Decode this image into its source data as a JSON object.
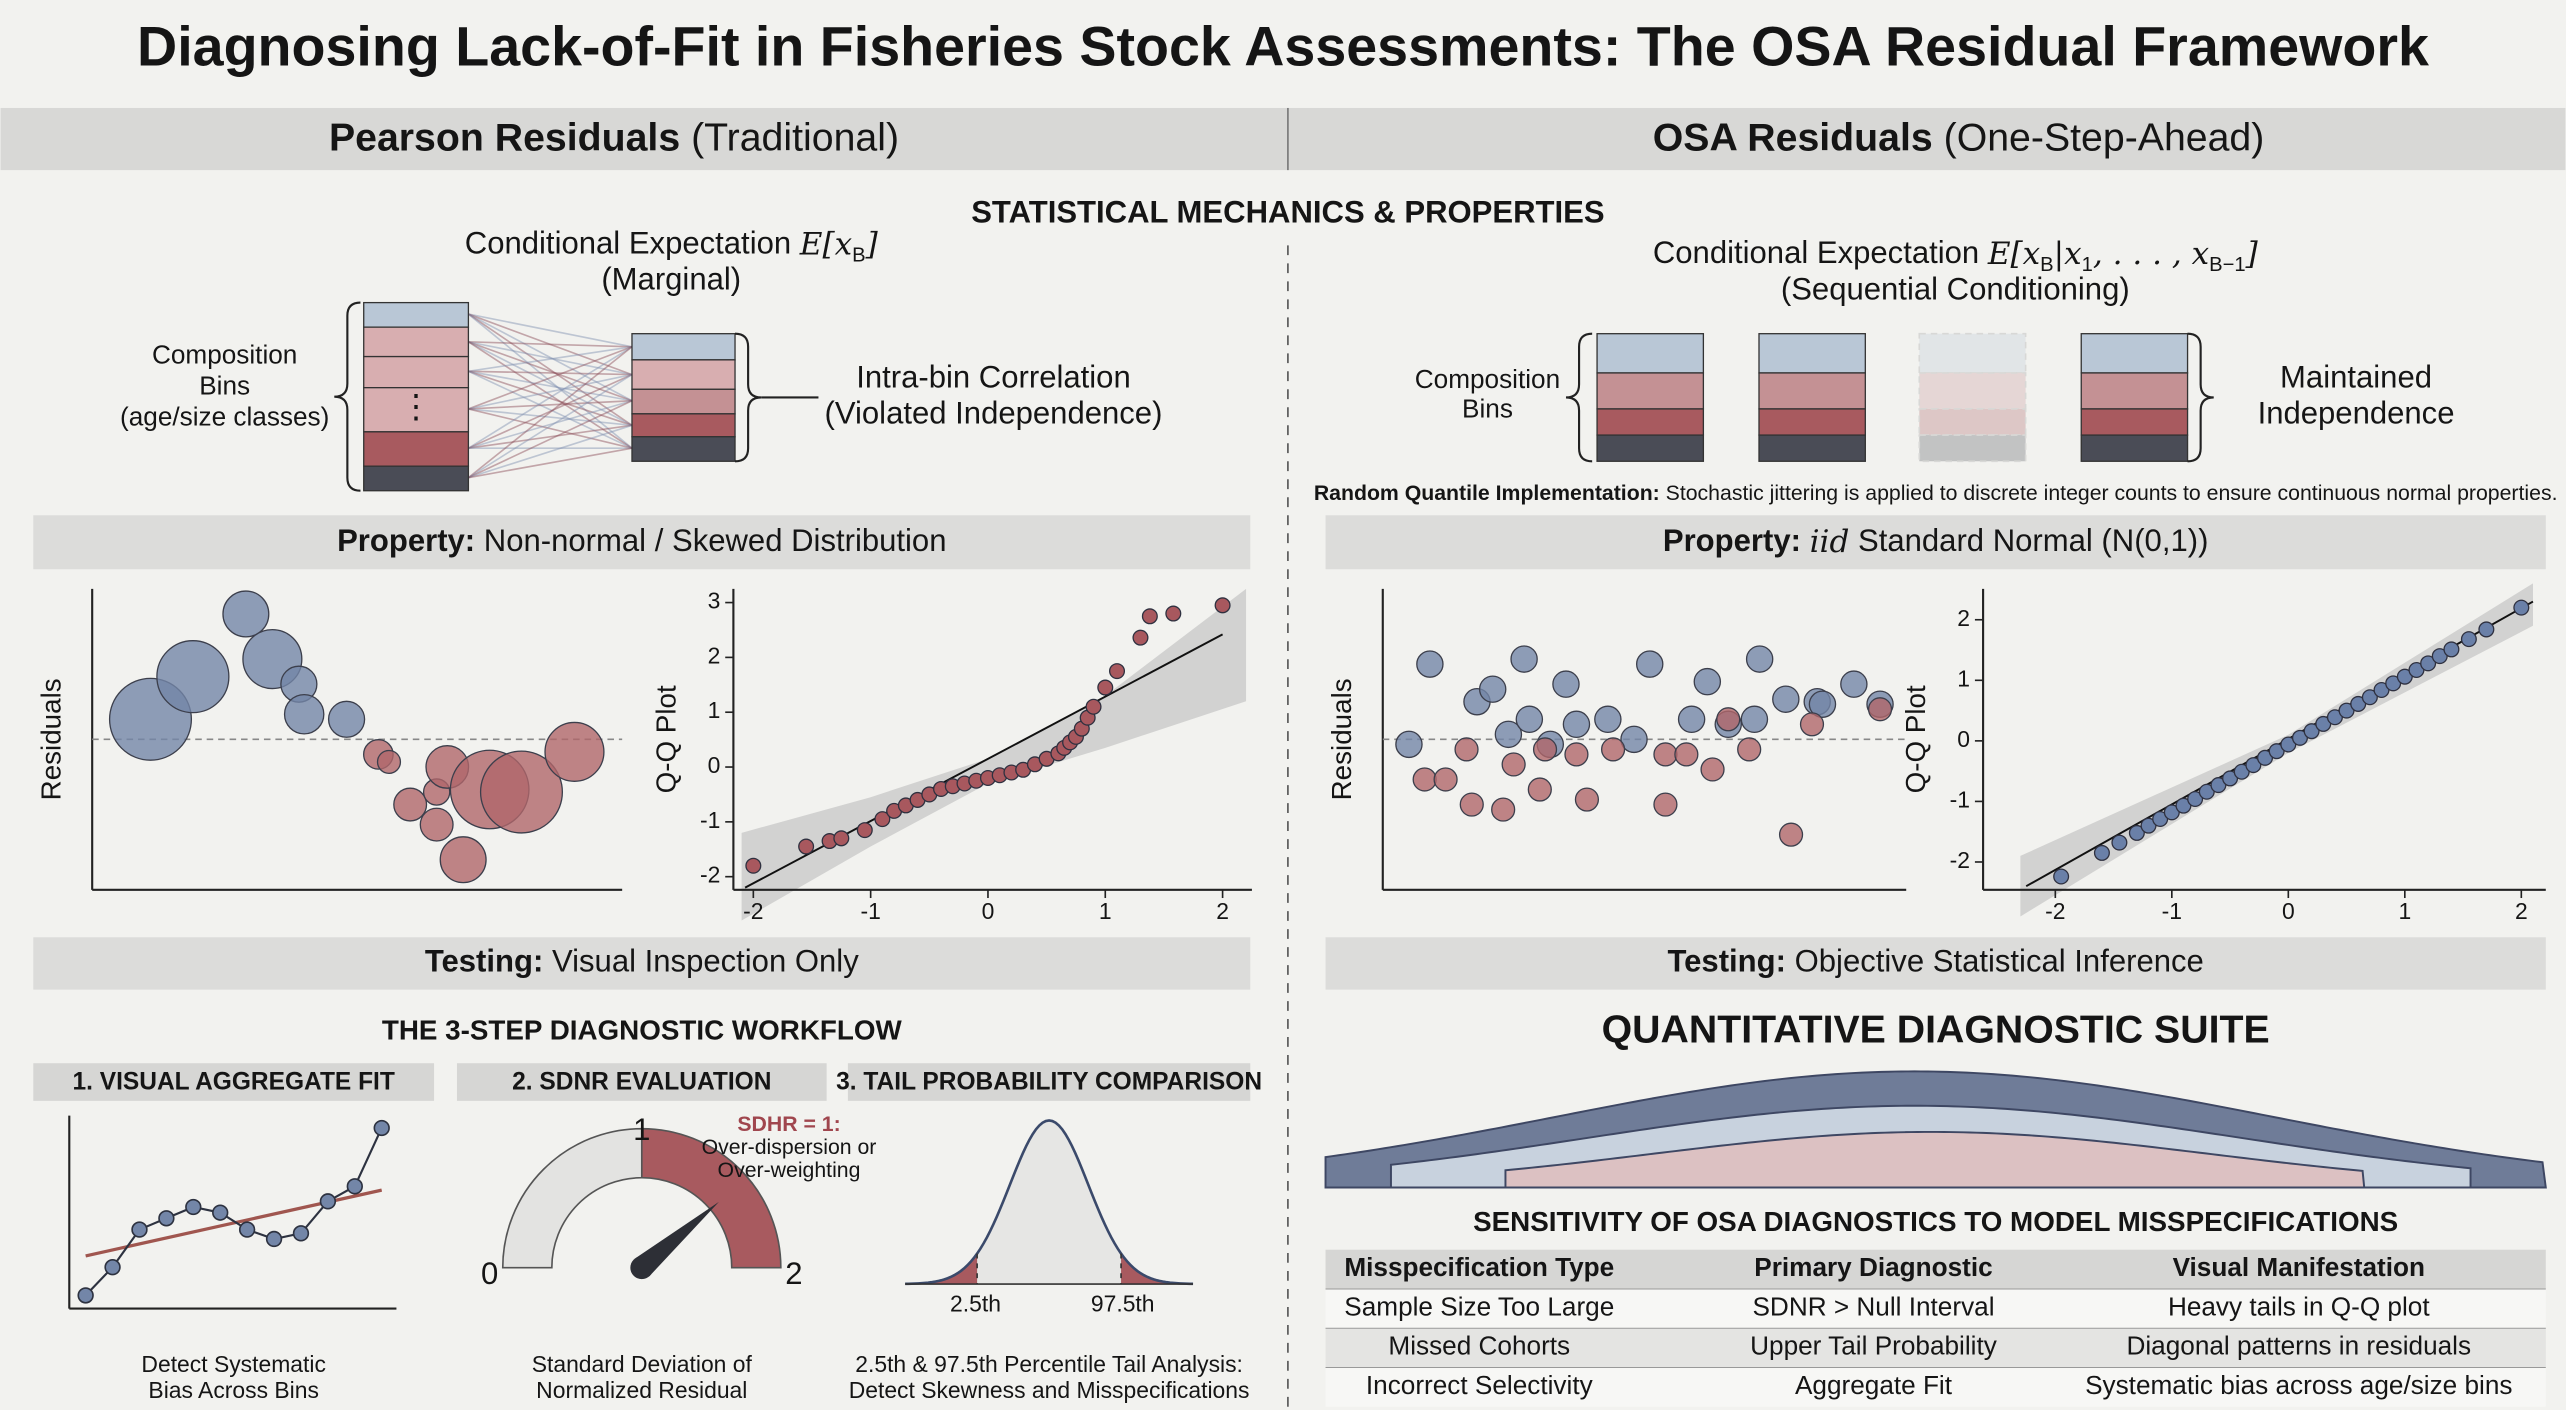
{
  "title": "Diagnosing Lack-of-Fit in Fisheries Stock Assessments: The OSA Residual Framework",
  "section_title": "STATISTICAL MECHANICS & PROPERTIES",
  "columns": [
    {
      "name_bold": "Pearson Residuals",
      "name_rest": "(Traditional)",
      "expectation": {
        "label": "Conditional Expectation",
        "formula": [
          {
            "text": "E[x"
          },
          {
            "text": "B",
            "sub": true
          },
          {
            "text": "]"
          }
        ],
        "note": "(Marginal)"
      },
      "bins_label": [
        "Composition",
        "Bins",
        "(age/size classes)"
      ],
      "ellipsis": "⋮",
      "correlation_label": [
        "Intra-bin Correlation",
        "(Violated Independence)"
      ],
      "property": {
        "label": "Property:",
        "text": "Non-normal / Skewed Distribution"
      },
      "testing": {
        "label": "Testing:",
        "text": "Visual Inspection Only"
      },
      "residual_plot": {
        "type": "scatter",
        "ylabel": "Residuals",
        "xlim": [
          0,
          10
        ],
        "ylim": [
          -3,
          3
        ],
        "zero_line": true,
        "series": [
          {
            "color": "#7386a8",
            "x": [
              1.1,
              1.9,
              2.9,
              3.4,
              3.9,
              4.0,
              4.8
            ],
            "y": [
              0.4,
              1.25,
              2.5,
              1.6,
              1.1,
              0.5,
              0.4
            ],
            "sizes": [
              25,
              22,
              14,
              18,
              11,
              12,
              11
            ]
          },
          {
            "color": "#b0666a",
            "x": [
              5.4,
              5.6,
              6.0,
              6.5,
              6.7,
              6.5,
              7.0,
              7.5,
              8.1,
              9.1
            ],
            "y": [
              -0.3,
              -0.45,
              -1.3,
              -1.05,
              -0.55,
              -1.7,
              -2.4,
              -1.0,
              -1.05,
              -0.25
            ],
            "sizes": [
              9,
              7,
              10,
              8,
              13,
              10,
              14,
              24,
              25,
              18
            ]
          }
        ]
      },
      "qq_plot": {
        "type": "qq",
        "ylabel": "Q-Q Plot",
        "xlim": [
          -2.17,
          2.25
        ],
        "ylim": [
          -2.24,
          3.25
        ],
        "xticks": [
          -2,
          -1,
          0,
          1,
          2
        ],
        "yticks": [
          -2,
          -1,
          0,
          1,
          2,
          3
        ],
        "color": "#a8585e",
        "x": [
          -2,
          -1.55,
          -1.35,
          -1.25,
          -1.05,
          -0.9,
          -0.8,
          -0.7,
          -0.6,
          -0.5,
          -0.4,
          -0.3,
          -0.2,
          -0.1,
          0,
          0.1,
          0.2,
          0.3,
          0.4,
          0.5,
          0.6,
          0.65,
          0.7,
          0.75,
          0.8,
          0.85,
          0.9,
          1.0,
          1.1,
          1.3,
          1.38,
          1.58,
          2.0
        ],
        "y": [
          -1.8,
          -1.45,
          -1.35,
          -1.3,
          -1.15,
          -0.95,
          -0.8,
          -0.7,
          -0.6,
          -0.5,
          -0.4,
          -0.35,
          -0.3,
          -0.25,
          -0.2,
          -0.15,
          -0.1,
          -0.05,
          0.05,
          0.15,
          0.25,
          0.35,
          0.45,
          0.55,
          0.7,
          0.9,
          1.1,
          1.45,
          1.75,
          2.36,
          2.75,
          2.8,
          2.95
        ],
        "reference_line": {
          "x": [
            -2.07,
            2.0
          ],
          "y": [
            -2.2,
            2.42
          ]
        },
        "band": {
          "x": [
            -2.1,
            -1,
            0,
            1,
            2.2
          ],
          "upper": [
            -1.2,
            -0.55,
            0.15,
            1.3,
            3.25
          ],
          "lower": [
            -2.8,
            -1.45,
            -0.3,
            0.35,
            1.2
          ]
        }
      }
    },
    {
      "name_bold": "OSA Residuals",
      "name_rest": "(One-Step-Ahead)",
      "expectation": {
        "label": "Conditional Expectation",
        "formula": [
          {
            "text": "E[x"
          },
          {
            "text": "B",
            "sub": true
          },
          {
            "text": "|x"
          },
          {
            "text": "1",
            "sub": true
          },
          {
            "text": ", . . . , x"
          },
          {
            "text": "B−1",
            "sub": true
          },
          {
            "text": "]"
          }
        ],
        "note": "(Sequential Conditioning)"
      },
      "bins_label": [
        "Composition",
        "Bins"
      ],
      "independence_label": [
        "Maintained",
        "Independence"
      ],
      "random_quantile": {
        "label": "Random Quantile Implementation:",
        "text": "Stochastic jittering is applied to discrete integer counts to ensure continuous normal properties."
      },
      "property": {
        "label": "Property:",
        "math": "iid",
        "text": "Standard Normal (N(0,1))"
      },
      "testing": {
        "label": "Testing:",
        "text": "Objective Statistical Inference"
      },
      "residual_plot": {
        "type": "scatter",
        "ylabel": "Residuals",
        "xlim": [
          0,
          10
        ],
        "ylim": [
          -3,
          3
        ],
        "zero_line": true,
        "series": [
          {
            "color": "#7386a8",
            "x": [
              0.5,
              0.9,
              1.8,
              2.1,
              2.4,
              2.7,
              2.8,
              3.2,
              3.5,
              3.7,
              4.3,
              4.8,
              5.1,
              5.9,
              6.2,
              6.6,
              7.1,
              7.2,
              7.7,
              8.3,
              8.4,
              9.0,
              9.5
            ],
            "y": [
              -0.1,
              1.5,
              0.75,
              1.0,
              0.1,
              1.6,
              0.4,
              -0.1,
              1.1,
              0.3,
              0.4,
              0.0,
              1.5,
              0.4,
              1.15,
              0.3,
              0.4,
              1.6,
              0.8,
              0.75,
              0.7,
              1.1,
              0.7
            ],
            "sizes": [
              8,
              8,
              8,
              8,
              8,
              8,
              8,
              8,
              8,
              8,
              8,
              8,
              8,
              8,
              8,
              8,
              8,
              8,
              8,
              8,
              8,
              8,
              8
            ]
          },
          {
            "color": "#b0666a",
            "x": [
              0.8,
              1.2,
              1.6,
              1.7,
              2.3,
              2.5,
              3.0,
              3.1,
              3.7,
              3.9,
              4.4,
              5.4,
              5.4,
              5.8,
              6.3,
              6.6,
              7.0,
              7.8,
              8.2,
              9.5
            ],
            "y": [
              -0.8,
              -0.8,
              -0.2,
              -1.3,
              -1.4,
              -0.5,
              -1.0,
              -0.2,
              -0.3,
              -1.2,
              -0.2,
              -1.3,
              -0.3,
              -0.3,
              -0.6,
              0.4,
              -0.2,
              -1.9,
              0.3,
              0.6
            ],
            "sizes": [
              7,
              7,
              7,
              7,
              7,
              7,
              7,
              7,
              7,
              7,
              7,
              7,
              7,
              7,
              7,
              7,
              7,
              7,
              7,
              7
            ]
          }
        ]
      },
      "qq_plot": {
        "type": "qq",
        "ylabel": "Q-Q Plot",
        "xlim": [
          -2.62,
          2.21
        ],
        "ylim": [
          -2.46,
          2.51
        ],
        "xticks": [
          -2,
          -1,
          0,
          1,
          2
        ],
        "yticks": [
          -2,
          -1,
          0,
          1,
          2
        ],
        "color": "#6a80a8",
        "x": [
          -1.95,
          -1.6,
          -1.45,
          -1.3,
          -1.2,
          -1.1,
          -1.0,
          -0.9,
          -0.8,
          -0.7,
          -0.6,
          -0.5,
          -0.4,
          -0.3,
          -0.2,
          -0.1,
          0,
          0.1,
          0.2,
          0.3,
          0.4,
          0.5,
          0.6,
          0.7,
          0.8,
          0.9,
          1.0,
          1.1,
          1.2,
          1.3,
          1.4,
          1.55,
          1.7,
          2.0
        ],
        "y": [
          -2.24,
          -1.85,
          -1.68,
          -1.52,
          -1.4,
          -1.29,
          -1.18,
          -1.07,
          -0.96,
          -0.84,
          -0.73,
          -0.62,
          -0.51,
          -0.4,
          -0.28,
          -0.17,
          -0.06,
          0.05,
          0.16,
          0.28,
          0.39,
          0.5,
          0.61,
          0.72,
          0.84,
          0.95,
          1.06,
          1.17,
          1.28,
          1.4,
          1.51,
          1.68,
          1.84,
          2.2
        ],
        "reference_line": {
          "x": [
            -2.25,
            2.1
          ],
          "y": [
            -2.4,
            2.3
          ]
        },
        "band": {
          "x": [
            -2.3,
            0,
            2.1
          ],
          "upper": [
            -1.9,
            0.1,
            2.6
          ],
          "lower": [
            -2.9,
            -0.2,
            1.9
          ]
        }
      }
    }
  ],
  "workflow": {
    "title": "THE 3-STEP DIAGNOSTIC WORKFLOW",
    "steps": [
      {
        "title": "1. VISUAL AGGREGATE FIT",
        "caption": [
          "Detect Systematic",
          "Bias Across Bins"
        ],
        "values": [
          0.7,
          2.2,
          4.2,
          4.8,
          5.4,
          5.1,
          4.2,
          3.7,
          4.0,
          5.7,
          6.5,
          9.6
        ],
        "trend": [
          2.8,
          6.3
        ],
        "ylim": [
          0,
          10
        ]
      },
      {
        "title": "2. SDNR EVALUATION",
        "caption": [
          "Standard Deviation of",
          "Normalized Residual"
        ],
        "gauge": {
          "ticks": [
            0,
            1,
            2
          ],
          "value": 1.55
        },
        "annotation": {
          "label": "SDHR = 1:",
          "lines": [
            "Over-dispersion or",
            "Over-weighting"
          ]
        }
      },
      {
        "title": "3. TAIL PROBABILITY COMPARISON",
        "caption": [
          "2.5th & 97.5th Percentile Tail Analysis:",
          "Detect Skewness and Misspecifications"
        ],
        "labels": [
          "2.5th",
          "97.5th"
        ]
      }
    ]
  },
  "suite": {
    "title": "QUANTITATIVE DIAGNOSTIC SUITE",
    "table_title": "SENSITIVITY OF OSA DIAGNOSTICS TO MODEL MISSPECIFICATIONS",
    "table": {
      "header": [
        "Misspecification Type",
        "Primary Diagnostic",
        "Visual Manifestation"
      ],
      "rows": [
        [
          "Sample Size Too Large",
          "SDNR > Null Interval",
          "Heavy tails in Q-Q plot"
        ],
        [
          "Missed Cohorts",
          "Upper Tail Probability",
          "Diagonal patterns in residuals"
        ],
        [
          "Incorrect Selectivity",
          "Aggregate Fit",
          "Systematic bias across age/size bins"
        ]
      ]
    }
  }
}
